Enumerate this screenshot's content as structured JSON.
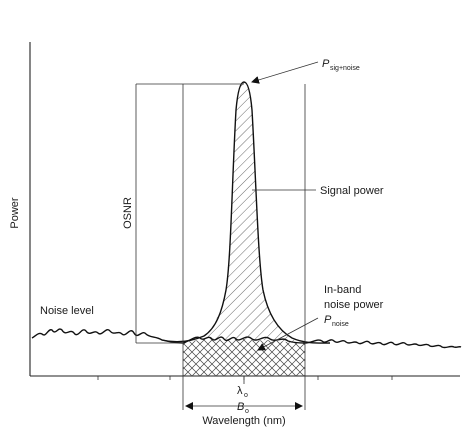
{
  "labels": {
    "y_axis": "Power",
    "x_axis": "Wavelength (nm)",
    "osnr": "OSNR",
    "noise_level": "Noise level",
    "signal_power": "Signal power",
    "inband_line1": "In-band",
    "inband_line2": "noise power",
    "p_sig_main": "P",
    "p_sig_sub": "sig+noise",
    "p_noise_main": "P",
    "p_noise_sub": "noise",
    "lambda_main": "λ",
    "lambda_sub": "o",
    "bandwidth_main": "B",
    "bandwidth_sub": "o"
  }
}
